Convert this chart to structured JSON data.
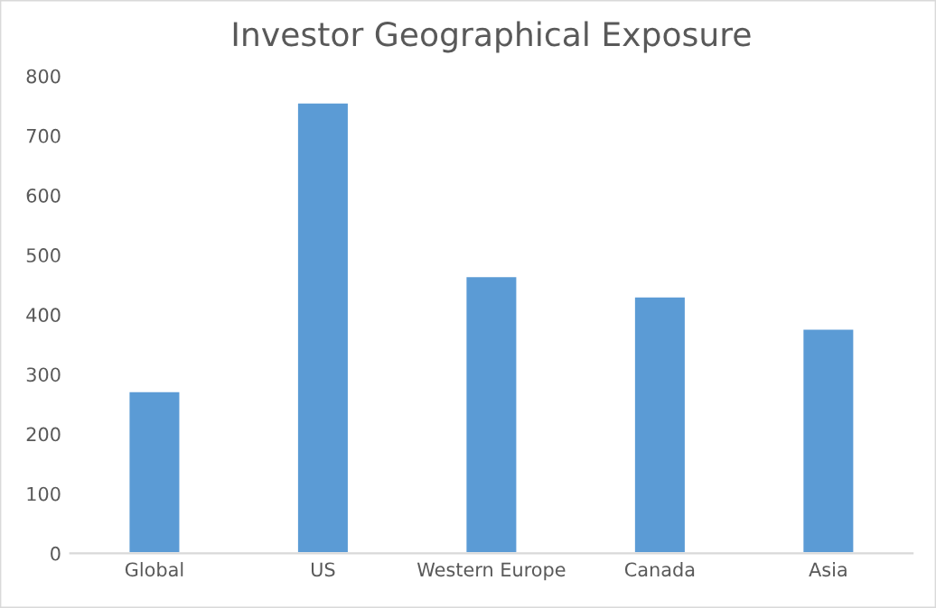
{
  "chart_data": {
    "type": "bar",
    "title": "Investor Geographical Exposure",
    "categories": [
      "Global",
      "US",
      "Western Europe",
      "Canada",
      "Asia"
    ],
    "values": [
      272,
      756,
      465,
      431,
      377
    ],
    "color": "#5b9bd5",
    "ylim": [
      0,
      800
    ],
    "yticks": [
      0,
      100,
      200,
      300,
      400,
      500,
      600,
      700,
      800
    ],
    "grid": false
  }
}
